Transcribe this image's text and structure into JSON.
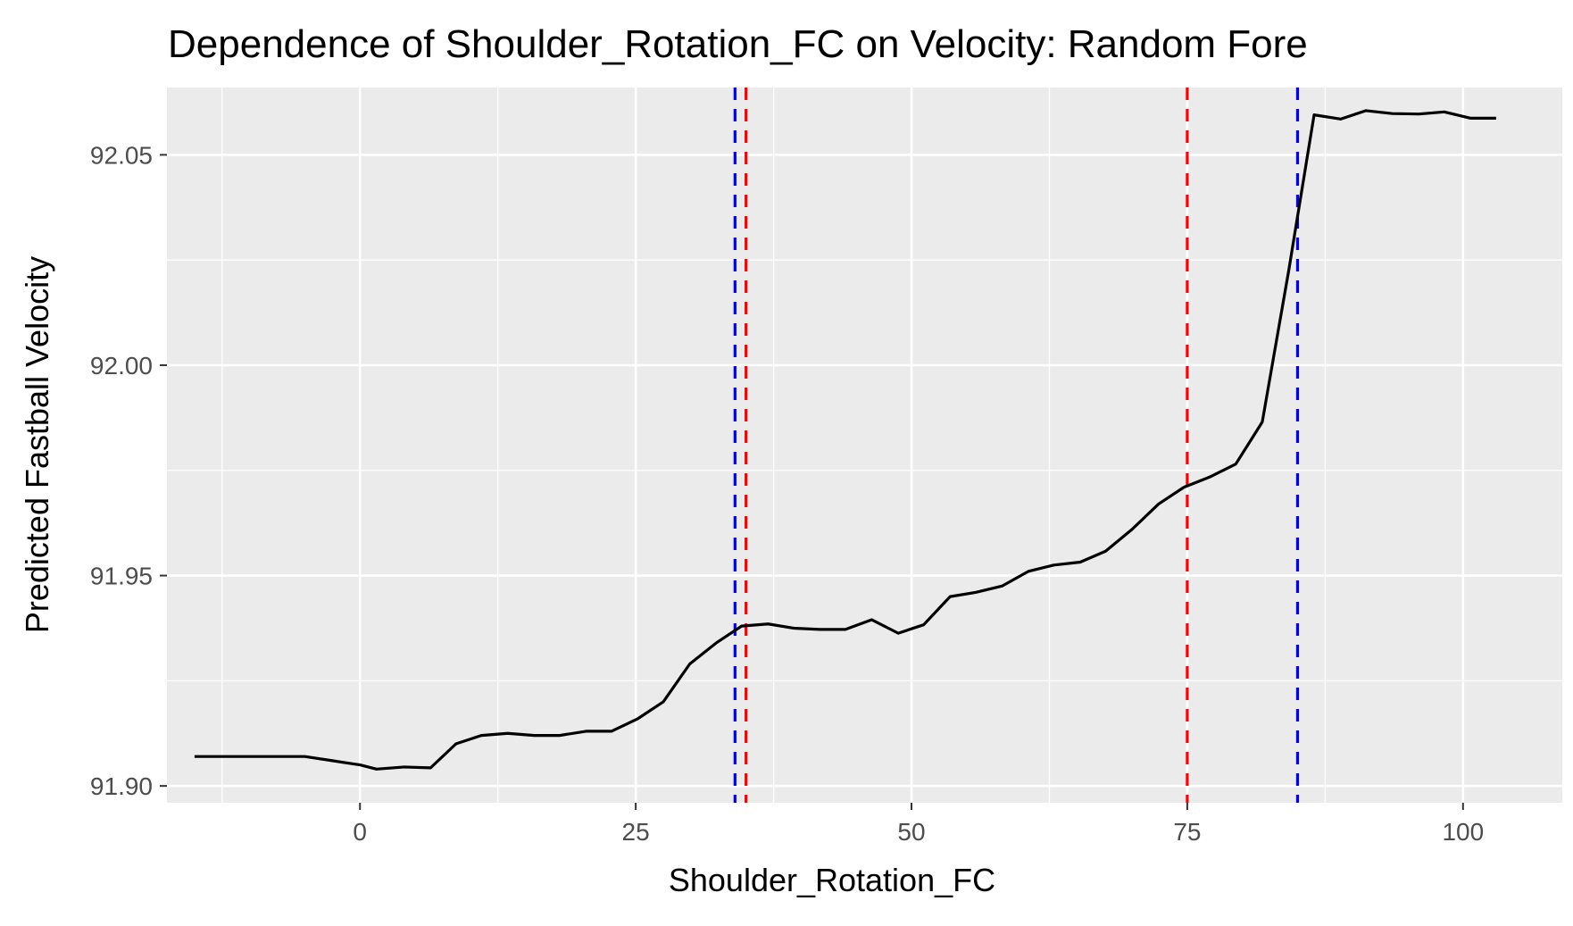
{
  "chart_data": {
    "type": "line",
    "title": "Dependence of Shoulder_Rotation_FC on Velocity: Random Fore",
    "xlabel": "Shoulder_Rotation_FC",
    "ylabel": "Predicted Fastball Velocity",
    "xlim": [
      -17.5,
      109
    ],
    "ylim": [
      91.896,
      92.066
    ],
    "x_ticks": [
      0,
      25,
      50,
      75,
      100
    ],
    "x_tick_labels": [
      "0",
      "25",
      "50",
      "75",
      "100"
    ],
    "y_ticks": [
      91.9,
      91.95,
      92.0,
      92.05
    ],
    "y_tick_labels": [
      "91.90",
      "91.95",
      "92.00",
      "92.05"
    ],
    "grid": true,
    "panel_background": "#ebebeb",
    "series": [
      {
        "color": "#000000",
        "x": [
          -15.0,
          -12.5,
          -10.0,
          -7.5,
          -5.0,
          -2.5,
          0.0,
          1.5,
          4.0,
          6.4,
          8.7,
          11.0,
          13.4,
          15.8,
          18.1,
          20.5,
          22.8,
          25.2,
          27.5,
          29.9,
          32.3,
          34.6,
          37.0,
          39.3,
          41.7,
          44.0,
          46.4,
          48.8,
          51.1,
          53.5,
          55.8,
          58.2,
          60.6,
          62.9,
          65.3,
          67.6,
          70.0,
          72.4,
          74.7,
          77.1,
          79.4,
          81.8,
          84.2,
          86.5,
          88.9,
          91.2,
          93.6,
          96.0,
          98.3,
          100.7,
          103.0
        ],
        "y": [
          91.907,
          91.907,
          91.907,
          91.907,
          91.907,
          91.906,
          91.905,
          91.904,
          91.9045,
          91.9043,
          91.91,
          91.912,
          91.9125,
          91.912,
          91.912,
          91.913,
          91.913,
          91.916,
          91.92,
          91.929,
          91.934,
          91.938,
          91.9385,
          91.9375,
          91.9372,
          91.9372,
          91.9395,
          91.9363,
          91.9383,
          91.945,
          91.946,
          91.9475,
          91.951,
          91.9525,
          91.9532,
          91.9558,
          91.961,
          91.967,
          91.971,
          91.9735,
          91.9765,
          91.9865,
          92.0225,
          92.0595,
          92.0585,
          92.0605,
          92.0598,
          92.0597,
          92.0602,
          92.0587,
          92.0587
        ]
      }
    ],
    "vlines": [
      {
        "x": 34.0,
        "color": "#0000ff",
        "style": "dashed"
      },
      {
        "x": 35.0,
        "color": "#ff0000",
        "style": "dashed"
      },
      {
        "x": 75.0,
        "color": "#ff0000",
        "style": "dashed"
      },
      {
        "x": 85.0,
        "color": "#0000ff",
        "style": "dashed"
      }
    ]
  }
}
